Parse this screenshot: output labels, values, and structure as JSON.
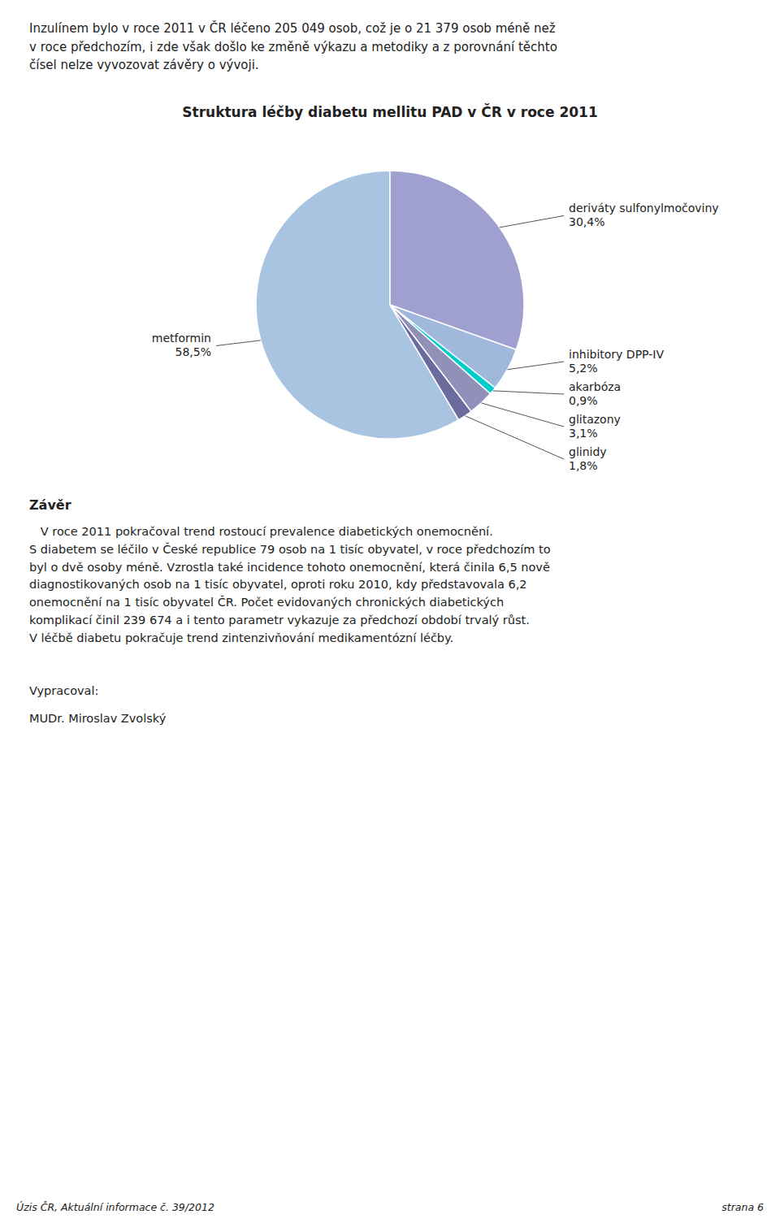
{
  "chart_data": {
    "type": "pie",
    "title": "Struktura léčby diabetu mellitu PAD v ČR v roce 2011",
    "categories": [
      "metformin",
      "glinidy",
      "glitazony",
      "akarbóza",
      "inhibitory DPP-IV",
      "deriváty sulfonylmočoviny"
    ],
    "values": [
      58.5,
      1.8,
      3.1,
      0.9,
      5.2,
      30.4
    ],
    "value_labels": [
      "58,5%",
      "1,8%",
      "3,1%",
      "0,9%",
      "5,2%",
      "30,4%"
    ],
    "colors": [
      "#a8c4e0",
      "#6b6b9e",
      "#9090b8",
      "#00cccc",
      "#a0b8dc",
      "#a0a0d0"
    ],
    "data_labels": true
  },
  "header_text": "Inzulínem bylo v roce 2011 v ČR léčeno 205 049 osob, což je o 21 379 osob méně než\nv roce předchozím, i zde však došlo ke změně výkazu a metodiky a z porovnání těchto\nčísel nelze vyvozovat závěry o vývoji.",
  "zaver_title": "Závěr",
  "zaver_paragraphs": [
    "   V roce 2011 pokračoval trend rostoucí prevalence diabetických onemocnění.",
    "S diabetem se léčilo v České republice 79 osob na 1 tisíc obyvatel, v roce předchozím to\nbyl o dvě osoby méně. Vzrostla také incidence tohoto onemocnění, která činila 6,5 nově\ndiagnostikovaných osob na 1 tisíc obyvatel, oproti roku 2010, kdy představovala 6,2\nonemocnění na 1 tisíc obyvatel ČR. Počet evidovaných chronických diabetických\nkomplikací činil 239 674 a i tento parametr vykazuje za předchozí období trvalý růst.\nV léčbě diabetu pokračuje trend zintenzivňování medikamentózní léčby."
  ],
  "vypracoval": [
    "Vypracoval:",
    "MUDr. Miroslav Zvolský"
  ],
  "footer_left": "Úzis ČR, Aktuální informace č. 39/2012",
  "footer_right": "strana 6"
}
